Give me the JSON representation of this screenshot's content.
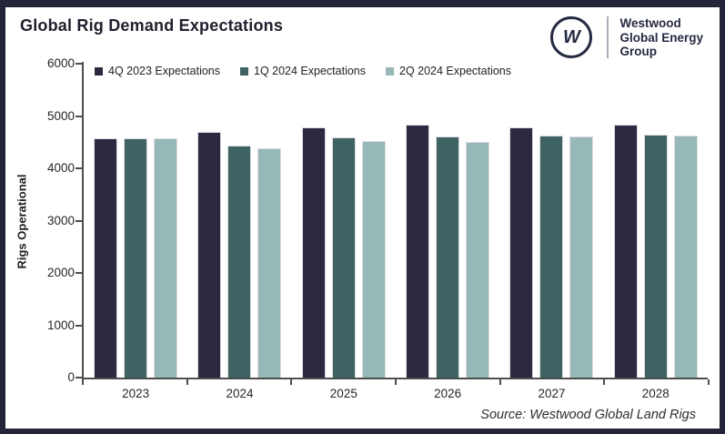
{
  "colors": {
    "frame": "#24243a",
    "axis": "#4d4d4d",
    "series_colors": [
      "#2b2a40",
      "#3f6363",
      "#96b8b6"
    ]
  },
  "header": {
    "title": "Global Rig Demand Expectations",
    "logo": {
      "mark": "W",
      "lines": [
        "Westwood",
        "Global Energy",
        "Group"
      ]
    }
  },
  "chart_data": {
    "type": "bar",
    "title": "Global Rig Demand Expectations",
    "categories": [
      "2023",
      "2024",
      "2025",
      "2026",
      "2027",
      "2028"
    ],
    "series": [
      {
        "name": "4Q 2023 Expectations",
        "color": "#2b2a40",
        "values": [
          4570,
          4700,
          4780,
          4830,
          4780,
          4830
        ]
      },
      {
        "name": "1Q 2024 Expectations",
        "color": "#3f6363",
        "values": [
          4570,
          4430,
          4590,
          4600,
          4630,
          4650
        ]
      },
      {
        "name": "2Q 2024 Expectations",
        "color": "#96b8b6",
        "values": [
          4570,
          4390,
          4530,
          4510,
          4610,
          4630
        ]
      }
    ],
    "xlabel": "",
    "ylabel": "Rigs Operational",
    "ylim": [
      0,
      6000
    ],
    "ytick_step": 1000,
    "grid": false,
    "legend_position": "top-left"
  },
  "footer": {
    "source": "Source: Westwood Global Land Rigs"
  }
}
